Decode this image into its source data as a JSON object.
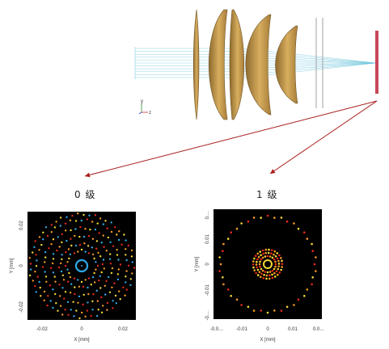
{
  "labels": {
    "order0": "0 级",
    "order1": "1 级"
  },
  "coord_axes": {
    "y": "y",
    "z": "z"
  },
  "plots": [
    {
      "id": "order0",
      "xlabel": "X [mm]",
      "ylabel": "Y [mm]",
      "xticks": [
        "-0.02",
        "0",
        "0.02"
      ],
      "yticks": [
        "0.02",
        "0",
        "-0.02"
      ]
    },
    {
      "id": "order1",
      "xlabel": "X [mm]",
      "ylabel": "Y [mm]",
      "xticks": [
        "-0.0…",
        "-0.01",
        "0",
        "0.01",
        "0.0…"
      ],
      "yticks": [
        "0.…",
        "0.01",
        "0",
        "-0.01",
        "-0.…"
      ]
    }
  ],
  "colors": {
    "lens_fill": "#c79a4e",
    "lens_edge": "#6f5526",
    "ray": "#6ec6dc",
    "detector": "#c8475a",
    "arrow": "#a81c1c",
    "spot_red": "#e8291c",
    "spot_orange": "#f59a23",
    "spot_yellow": "#f3d838",
    "spot_blue": "#2fa8e8"
  }
}
